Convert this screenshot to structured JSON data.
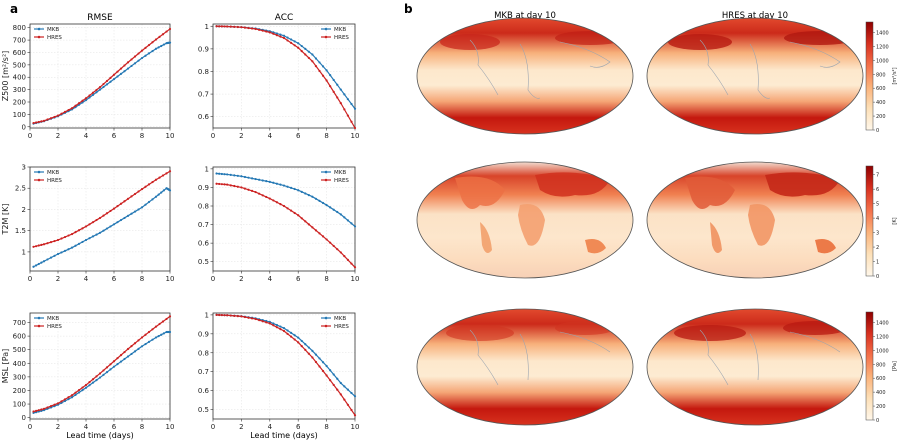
{
  "panel_labels": {
    "a": "a",
    "b": "b"
  },
  "column_titles": {
    "rmse": "RMSE",
    "acc": "ACC"
  },
  "map_titles": {
    "left": "MKB at day 10",
    "right": "HRES at day 10"
  },
  "xlabel": "Lead time (days)",
  "series_colors": {
    "MKB": "#2478b4",
    "HRES": "#cc2222"
  },
  "chart_data": [
    {
      "id": "z500-rmse",
      "type": "line",
      "ylabel": "Z500 [m²/s²]",
      "xlim": [
        0,
        10
      ],
      "ylim": [
        -10,
        830
      ],
      "xticks": [
        0,
        2,
        4,
        6,
        8,
        10
      ],
      "yticks": [
        0,
        100,
        200,
        300,
        400,
        500,
        600,
        700,
        800
      ],
      "legend": "top-left",
      "grid": true,
      "series": [
        {
          "name": "MKB",
          "x": [
            0.25,
            1,
            2,
            3,
            4,
            5,
            6,
            7,
            8,
            9,
            9.75,
            10
          ],
          "y": [
            25,
            45,
            85,
            140,
            215,
            300,
            385,
            470,
            555,
            630,
            675,
            680
          ]
        },
        {
          "name": "HRES",
          "x": [
            0.25,
            1,
            2,
            3,
            4,
            5,
            6,
            7,
            8,
            9,
            10
          ],
          "y": [
            30,
            48,
            90,
            150,
            230,
            320,
            420,
            520,
            615,
            705,
            790
          ]
        }
      ]
    },
    {
      "id": "z500-acc",
      "type": "line",
      "ylabel": "",
      "xlim": [
        0,
        10
      ],
      "ylim": [
        0.55,
        1.01
      ],
      "xticks": [
        0,
        2,
        4,
        6,
        8,
        10
      ],
      "yticks": [
        0.6,
        0.7,
        0.8,
        0.9,
        1.0
      ],
      "legend": "top-right",
      "grid": true,
      "series": [
        {
          "name": "MKB",
          "x": [
            0.25,
            1,
            2,
            3,
            4,
            5,
            6,
            7,
            8,
            9,
            10
          ],
          "y": [
            1.0,
            0.999,
            0.996,
            0.99,
            0.978,
            0.958,
            0.925,
            0.875,
            0.805,
            0.72,
            0.635
          ]
        },
        {
          "name": "HRES",
          "x": [
            0.25,
            1,
            2,
            3,
            4,
            5,
            6,
            7,
            8,
            9,
            10
          ],
          "y": [
            1.0,
            0.999,
            0.996,
            0.988,
            0.973,
            0.948,
            0.905,
            0.845,
            0.76,
            0.66,
            0.55
          ]
        }
      ]
    },
    {
      "id": "t2m-rmse",
      "type": "line",
      "ylabel": "T2M [K]",
      "xlim": [
        0,
        10
      ],
      "ylim": [
        0.55,
        3.0
      ],
      "xticks": [
        0,
        2,
        4,
        6,
        8,
        10
      ],
      "yticks": [
        1.0,
        1.5,
        2.0,
        2.5,
        3.0
      ],
      "legend": "top-left",
      "grid": true,
      "series": [
        {
          "name": "MKB",
          "x": [
            0.25,
            1,
            2,
            3,
            4,
            5,
            6,
            7,
            8,
            9,
            9.75,
            10
          ],
          "y": [
            0.65,
            0.78,
            0.95,
            1.1,
            1.28,
            1.45,
            1.65,
            1.85,
            2.05,
            2.3,
            2.5,
            2.45
          ]
        },
        {
          "name": "HRES",
          "x": [
            0.25,
            1,
            2,
            3,
            4,
            5,
            6,
            7,
            8,
            9,
            10
          ],
          "y": [
            1.12,
            1.18,
            1.28,
            1.42,
            1.6,
            1.8,
            2.02,
            2.25,
            2.48,
            2.7,
            2.9
          ]
        }
      ]
    },
    {
      "id": "t2m-acc",
      "type": "line",
      "ylabel": "",
      "xlim": [
        0,
        10
      ],
      "ylim": [
        0.45,
        1.01
      ],
      "xticks": [
        0,
        2,
        4,
        6,
        8,
        10
      ],
      "yticks": [
        0.5,
        0.6,
        0.7,
        0.8,
        0.9,
        1.0
      ],
      "legend": "top-right",
      "grid": true,
      "series": [
        {
          "name": "MKB",
          "x": [
            0.25,
            1,
            2,
            3,
            4,
            5,
            6,
            7,
            8,
            9,
            10
          ],
          "y": [
            0.975,
            0.97,
            0.96,
            0.945,
            0.93,
            0.91,
            0.885,
            0.85,
            0.805,
            0.755,
            0.69
          ]
        },
        {
          "name": "HRES",
          "x": [
            0.25,
            1,
            2,
            3,
            4,
            5,
            6,
            7,
            8,
            9,
            10
          ],
          "y": [
            0.92,
            0.915,
            0.9,
            0.875,
            0.84,
            0.8,
            0.75,
            0.685,
            0.62,
            0.55,
            0.47
          ]
        }
      ]
    },
    {
      "id": "msl-rmse",
      "type": "line",
      "ylabel": "MSL [Pa]",
      "xlim": [
        0,
        10
      ],
      "ylim": [
        -10,
        770
      ],
      "xticks": [
        0,
        2,
        4,
        6,
        8,
        10
      ],
      "yticks": [
        0,
        100,
        200,
        300,
        400,
        500,
        600,
        700
      ],
      "legend": "top-left",
      "grid": true,
      "series": [
        {
          "name": "MKB",
          "x": [
            0.25,
            1,
            2,
            3,
            4,
            5,
            6,
            7,
            8,
            9,
            9.75,
            10
          ],
          "y": [
            35,
            55,
            95,
            150,
            220,
            295,
            375,
            450,
            525,
            590,
            630,
            630
          ]
        },
        {
          "name": "HRES",
          "x": [
            0.25,
            1,
            2,
            3,
            4,
            5,
            6,
            7,
            8,
            9,
            10
          ],
          "y": [
            45,
            65,
            105,
            165,
            240,
            325,
            415,
            505,
            590,
            670,
            745
          ]
        }
      ]
    },
    {
      "id": "msl-acc",
      "type": "line",
      "ylabel": "",
      "xlim": [
        0,
        10
      ],
      "ylim": [
        0.45,
        1.01
      ],
      "xticks": [
        0,
        2,
        4,
        6,
        8,
        10
      ],
      "yticks": [
        0.5,
        0.6,
        0.7,
        0.8,
        0.9,
        1.0
      ],
      "legend": "top-right",
      "grid": true,
      "series": [
        {
          "name": "MKB",
          "x": [
            0.25,
            1,
            2,
            3,
            4,
            5,
            6,
            7,
            8,
            9,
            10
          ],
          "y": [
            1.0,
            0.998,
            0.993,
            0.982,
            0.963,
            0.93,
            0.88,
            0.81,
            0.73,
            0.64,
            0.57
          ]
        },
        {
          "name": "HRES",
          "x": [
            0.25,
            1,
            2,
            3,
            4,
            5,
            6,
            7,
            8,
            9,
            10
          ],
          "y": [
            1.0,
            0.998,
            0.992,
            0.978,
            0.955,
            0.915,
            0.855,
            0.775,
            0.68,
            0.58,
            0.47
          ]
        }
      ]
    }
  ],
  "colorbars": [
    {
      "id": "cb-z500",
      "unit": "[m²/s²]",
      "ticks": [
        0,
        200,
        400,
        600,
        800,
        1000,
        1200,
        1400
      ],
      "range": [
        0,
        1550
      ]
    },
    {
      "id": "cb-t2m",
      "unit": "[K]",
      "ticks": [
        0,
        1,
        2,
        3,
        4,
        5,
        6,
        7
      ],
      "range": [
        0,
        7.6
      ]
    },
    {
      "id": "cb-msl",
      "unit": "[Pa]",
      "ticks": [
        0,
        200,
        400,
        600,
        800,
        1000,
        1200,
        1400
      ],
      "range": [
        0,
        1550
      ]
    }
  ],
  "colormap": [
    "#fff7ea",
    "#fde0b8",
    "#fbb27a",
    "#f4704a",
    "#d7301f",
    "#8f0000"
  ]
}
